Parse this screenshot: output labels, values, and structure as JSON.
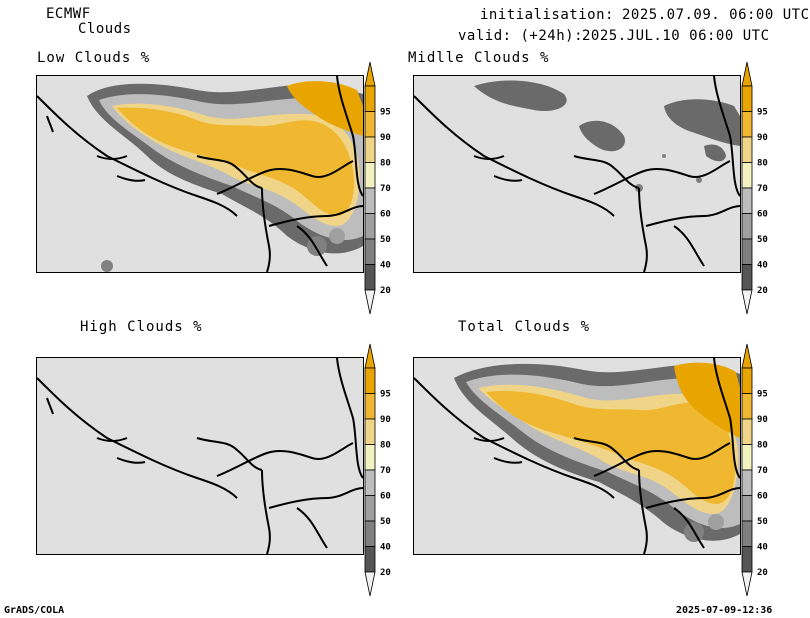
{
  "header": {
    "model": "ECMWF",
    "product": "Clouds",
    "init_label": "initialisation:",
    "init_value": "2025.07.09. 06:00 UTC",
    "valid_label": "valid: (+24h):",
    "valid_value": "2025.JUL.10 06:00 UTC"
  },
  "panels": [
    {
      "title": "Low Clouds %"
    },
    {
      "title": "Midlle Clouds %"
    },
    {
      "title": "High Clouds %"
    },
    {
      "title": "Total Clouds %"
    }
  ],
  "colorbar": {
    "levels": [
      "95",
      "90",
      "80",
      "70",
      "60",
      "50",
      "40",
      "20"
    ],
    "colors": [
      "#e8a400",
      "#f0b830",
      "#f0d488",
      "#f2f2c0",
      "#bdbdbd",
      "#a0a0a0",
      "#808080",
      "#555555"
    ],
    "below_color": "#f2f2f2",
    "above_color": "#e8a400"
  },
  "colors": {
    "background_map": "#e0e0e0",
    "high_cloud": "#f0b830",
    "mid_cloud": "#bdbdbd",
    "low_cloud": "#6a6a6a",
    "borders": "#000000"
  },
  "footer": {
    "left": "GrADS/COLA",
    "right": "2025-07-09-12:36"
  }
}
